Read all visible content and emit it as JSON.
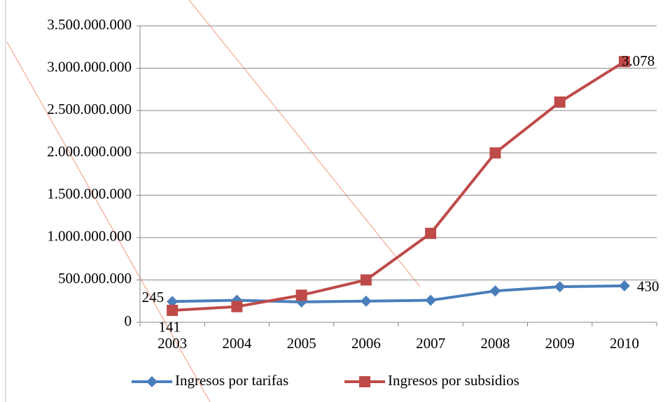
{
  "chart_data": {
    "type": "line",
    "categories": [
      "2003",
      "2004",
      "2005",
      "2006",
      "2007",
      "2008",
      "2009",
      "2010"
    ],
    "series": [
      {
        "name": "Ingresos por tarifas",
        "color": "#4a7ebb",
        "marker": "diamond",
        "values": [
          245000000,
          260000000,
          240000000,
          250000000,
          260000000,
          370000000,
          420000000,
          430000000
        ],
        "value_labels": [
          "245",
          null,
          null,
          null,
          null,
          null,
          null,
          "430"
        ]
      },
      {
        "name": "Ingresos por subsidios",
        "color": "#be4b48",
        "marker": "square",
        "values": [
          141000000,
          185000000,
          320000000,
          500000000,
          1050000000,
          2000000000,
          2600000000,
          3078000000
        ],
        "value_labels": [
          "141",
          null,
          null,
          null,
          null,
          null,
          null,
          "3.078"
        ]
      }
    ],
    "ylim": [
      0,
      3500000000
    ],
    "yticks": [
      0,
      {
        "value": 500000000,
        "label": "500.000.000"
      },
      {
        "value": 1000000000,
        "label": "1.000.000.000"
      },
      {
        "value": 1500000000,
        "label": "1.500.000.000"
      },
      {
        "value": 2000000000,
        "label": "2.000.000.000"
      },
      {
        "value": 2500000000,
        "label": "2.500.000.000"
      },
      {
        "value": 3000000000,
        "label": "3.000.000.000"
      },
      {
        "value": 3500000000,
        "label": "3.500.000.000"
      }
    ],
    "grid": true,
    "legend": "bottom"
  }
}
